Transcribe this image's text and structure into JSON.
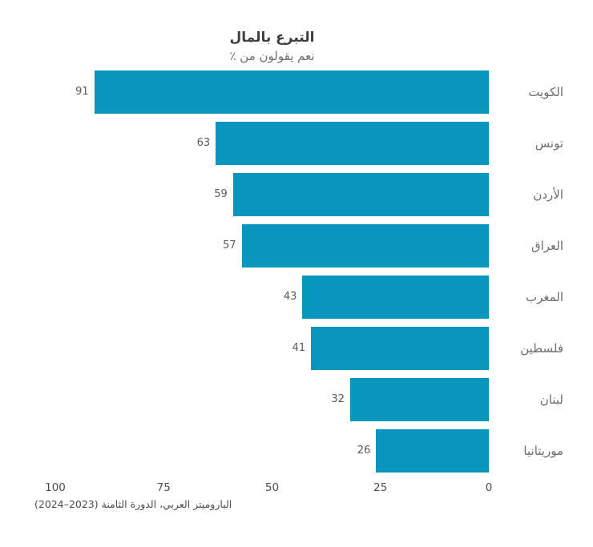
{
  "colors": {
    "background": "#ffffff",
    "bar": "#0896be",
    "title_text": "#3d3d3d",
    "subtitle_text": "#6f6f6f",
    "value_label_text": "#595959",
    "category_label_text": "#6b6b6b",
    "tick_label_text": "#4d4d4d",
    "source_text": "#4d4d4d"
  },
  "chart_data": {
    "type": "bar",
    "orientation": "horizontal",
    "direction": "rtl",
    "title": "التبرع بالمال",
    "subtitle": "٪ من يقولون نعم",
    "categories": [
      "الكويت",
      "تونس",
      "الأردن",
      "العراق",
      "المغرب",
      "فلسطين",
      "لبنان",
      "موريتانيا"
    ],
    "values": [
      91,
      63,
      59,
      57,
      43,
      41,
      32,
      26
    ],
    "xlim": [
      0,
      100
    ],
    "x_ticks": [
      100,
      75,
      50,
      25,
      0
    ],
    "grid": false,
    "legend": "none",
    "bar_color": "#0896be",
    "source_note": "الباروميتر العربي، الدورة الثامنة (2023–2024)"
  }
}
